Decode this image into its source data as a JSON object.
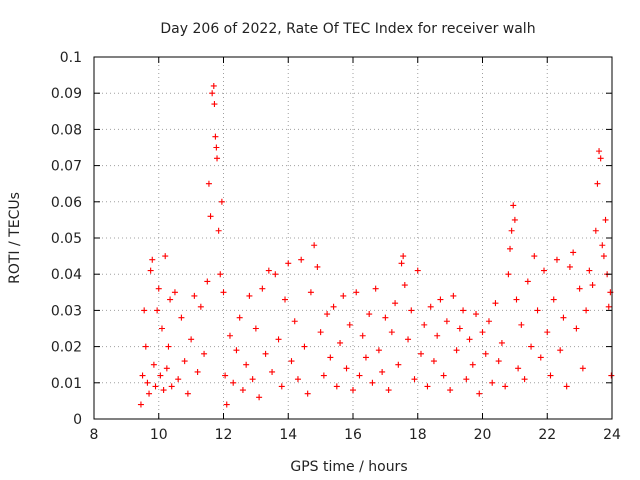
{
  "chart_data": {
    "type": "scatter",
    "title": "Day 206 of 2022, Rate Of TEC Index for receiver walh",
    "xlabel": "GPS time / hours",
    "ylabel": "ROTI / TECUs",
    "xlim": [
      8,
      24
    ],
    "ylim": [
      0,
      0.1
    ],
    "x_ticks": [
      8,
      10,
      12,
      14,
      16,
      18,
      20,
      22,
      24
    ],
    "y_ticks": [
      0,
      0.01,
      0.02,
      0.03,
      0.04,
      0.05,
      0.06,
      0.07,
      0.08,
      0.09,
      0.1
    ],
    "x_tick_labels": [
      "8",
      "10",
      "12",
      "14",
      "16",
      "18",
      "20",
      "22",
      "24"
    ],
    "y_tick_labels": [
      "0",
      "0.01",
      "0.02",
      "0.03",
      "0.04",
      "0.05",
      "0.06",
      "0.07",
      "0.08",
      "0.09",
      "0.1"
    ],
    "grid": true,
    "marker": "+",
    "marker_color": "#ff0000",
    "series": [
      {
        "points": [
          [
            9.45,
            0.004
          ],
          [
            9.5,
            0.012
          ],
          [
            9.55,
            0.03
          ],
          [
            9.6,
            0.02
          ],
          [
            9.65,
            0.01
          ],
          [
            9.7,
            0.007
          ],
          [
            9.75,
            0.041
          ],
          [
            9.8,
            0.044
          ],
          [
            9.85,
            0.015
          ],
          [
            9.9,
            0.009
          ],
          [
            9.95,
            0.03
          ],
          [
            10.0,
            0.036
          ],
          [
            10.05,
            0.012
          ],
          [
            10.1,
            0.025
          ],
          [
            10.15,
            0.008
          ],
          [
            10.2,
            0.045
          ],
          [
            10.25,
            0.014
          ],
          [
            10.3,
            0.02
          ],
          [
            10.35,
            0.033
          ],
          [
            10.4,
            0.009
          ],
          [
            10.5,
            0.035
          ],
          [
            10.6,
            0.011
          ],
          [
            10.7,
            0.028
          ],
          [
            10.8,
            0.016
          ],
          [
            10.9,
            0.007
          ],
          [
            11.0,
            0.022
          ],
          [
            11.1,
            0.034
          ],
          [
            11.2,
            0.013
          ],
          [
            11.3,
            0.031
          ],
          [
            11.4,
            0.018
          ],
          [
            11.5,
            0.038
          ],
          [
            11.55,
            0.065
          ],
          [
            11.6,
            0.056
          ],
          [
            11.65,
            0.09
          ],
          [
            11.7,
            0.092
          ],
          [
            11.72,
            0.087
          ],
          [
            11.75,
            0.078
          ],
          [
            11.78,
            0.075
          ],
          [
            11.8,
            0.072
          ],
          [
            11.85,
            0.052
          ],
          [
            11.9,
            0.04
          ],
          [
            11.95,
            0.06
          ],
          [
            12.0,
            0.035
          ],
          [
            12.05,
            0.012
          ],
          [
            12.1,
            0.004
          ],
          [
            12.2,
            0.023
          ],
          [
            12.3,
            0.01
          ],
          [
            12.4,
            0.019
          ],
          [
            12.5,
            0.028
          ],
          [
            12.6,
            0.008
          ],
          [
            12.7,
            0.015
          ],
          [
            12.8,
            0.034
          ],
          [
            12.9,
            0.011
          ],
          [
            13.0,
            0.025
          ],
          [
            13.1,
            0.006
          ],
          [
            13.2,
            0.036
          ],
          [
            13.3,
            0.018
          ],
          [
            13.4,
            0.041
          ],
          [
            13.5,
            0.013
          ],
          [
            13.6,
            0.04
          ],
          [
            13.7,
            0.022
          ],
          [
            13.8,
            0.009
          ],
          [
            13.9,
            0.033
          ],
          [
            14.0,
            0.043
          ],
          [
            14.1,
            0.016
          ],
          [
            14.2,
            0.027
          ],
          [
            14.3,
            0.011
          ],
          [
            14.4,
            0.044
          ],
          [
            14.5,
            0.02
          ],
          [
            14.6,
            0.007
          ],
          [
            14.7,
            0.035
          ],
          [
            14.8,
            0.048
          ],
          [
            14.9,
            0.042
          ],
          [
            15.0,
            0.024
          ],
          [
            15.1,
            0.012
          ],
          [
            15.2,
            0.029
          ],
          [
            15.3,
            0.017
          ],
          [
            15.4,
            0.031
          ],
          [
            15.5,
            0.009
          ],
          [
            15.6,
            0.021
          ],
          [
            15.7,
            0.034
          ],
          [
            15.8,
            0.014
          ],
          [
            15.9,
            0.026
          ],
          [
            16.0,
            0.008
          ],
          [
            16.1,
            0.035
          ],
          [
            16.2,
            0.012
          ],
          [
            16.3,
            0.023
          ],
          [
            16.4,
            0.017
          ],
          [
            16.5,
            0.029
          ],
          [
            16.6,
            0.01
          ],
          [
            16.7,
            0.036
          ],
          [
            16.8,
            0.019
          ],
          [
            16.9,
            0.013
          ],
          [
            17.0,
            0.028
          ],
          [
            17.1,
            0.008
          ],
          [
            17.2,
            0.024
          ],
          [
            17.3,
            0.032
          ],
          [
            17.4,
            0.015
          ],
          [
            17.5,
            0.043
          ],
          [
            17.55,
            0.045
          ],
          [
            17.6,
            0.037
          ],
          [
            17.7,
            0.022
          ],
          [
            17.8,
            0.03
          ],
          [
            17.9,
            0.011
          ],
          [
            18.0,
            0.041
          ],
          [
            18.1,
            0.018
          ],
          [
            18.2,
            0.026
          ],
          [
            18.3,
            0.009
          ],
          [
            18.4,
            0.031
          ],
          [
            18.5,
            0.016
          ],
          [
            18.6,
            0.023
          ],
          [
            18.7,
            0.033
          ],
          [
            18.8,
            0.012
          ],
          [
            18.9,
            0.027
          ],
          [
            19.0,
            0.008
          ],
          [
            19.1,
            0.034
          ],
          [
            19.2,
            0.019
          ],
          [
            19.3,
            0.025
          ],
          [
            19.4,
            0.03
          ],
          [
            19.5,
            0.011
          ],
          [
            19.6,
            0.022
          ],
          [
            19.7,
            0.015
          ],
          [
            19.8,
            0.029
          ],
          [
            19.9,
            0.007
          ],
          [
            20.0,
            0.024
          ],
          [
            20.1,
            0.018
          ],
          [
            20.2,
            0.027
          ],
          [
            20.3,
            0.01
          ],
          [
            20.4,
            0.032
          ],
          [
            20.5,
            0.016
          ],
          [
            20.6,
            0.021
          ],
          [
            20.7,
            0.009
          ],
          [
            20.8,
            0.04
          ],
          [
            20.85,
            0.047
          ],
          [
            20.9,
            0.052
          ],
          [
            20.95,
            0.059
          ],
          [
            21.0,
            0.055
          ],
          [
            21.05,
            0.033
          ],
          [
            21.1,
            0.014
          ],
          [
            21.2,
            0.026
          ],
          [
            21.3,
            0.011
          ],
          [
            21.4,
            0.038
          ],
          [
            21.5,
            0.02
          ],
          [
            21.6,
            0.045
          ],
          [
            21.7,
            0.03
          ],
          [
            21.8,
            0.017
          ],
          [
            21.9,
            0.041
          ],
          [
            22.0,
            0.024
          ],
          [
            22.1,
            0.012
          ],
          [
            22.2,
            0.033
          ],
          [
            22.3,
            0.044
          ],
          [
            22.4,
            0.019
          ],
          [
            22.5,
            0.028
          ],
          [
            22.6,
            0.009
          ],
          [
            22.7,
            0.042
          ],
          [
            22.8,
            0.046
          ],
          [
            22.9,
            0.025
          ],
          [
            23.0,
            0.036
          ],
          [
            23.1,
            0.014
          ],
          [
            23.2,
            0.03
          ],
          [
            23.3,
            0.041
          ],
          [
            23.4,
            0.037
          ],
          [
            23.5,
            0.052
          ],
          [
            23.55,
            0.065
          ],
          [
            23.6,
            0.074
          ],
          [
            23.65,
            0.072
          ],
          [
            23.7,
            0.048
          ],
          [
            23.75,
            0.045
          ],
          [
            23.8,
            0.055
          ],
          [
            23.85,
            0.04
          ],
          [
            23.9,
            0.031
          ],
          [
            23.95,
            0.035
          ],
          [
            23.98,
            0.012
          ]
        ]
      }
    ]
  }
}
